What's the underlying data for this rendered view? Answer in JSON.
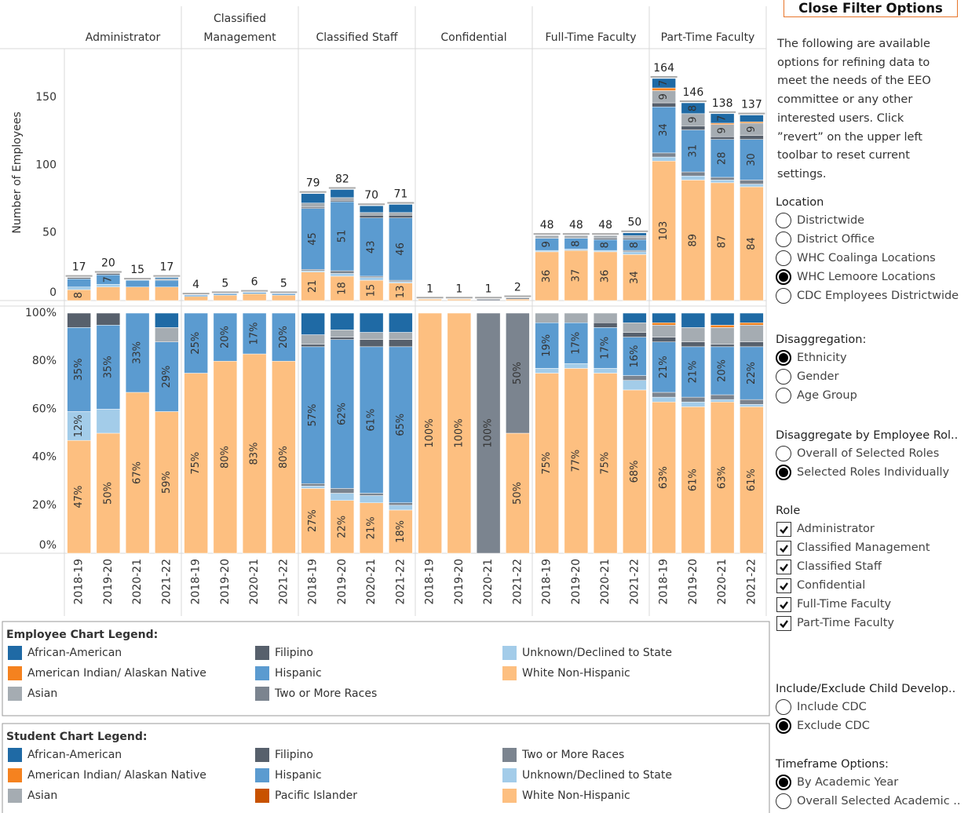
{
  "chart_data": [
    {
      "type": "bar",
      "stacked": true,
      "y_label": "Number of Employees",
      "panels": [
        "Administrator",
        "Classified Management",
        "Classified Staff",
        "Confidential",
        "Full-Time Faculty",
        "Part-Time Faculty"
      ],
      "ylim": [
        0,
        186
      ],
      "yticks": [
        0,
        50,
        100,
        150
      ],
      "grid": false,
      "totals": [
        17,
        20,
        15,
        17,
        4,
        5,
        6,
        5,
        79,
        82,
        70,
        71,
        1,
        1,
        1,
        2,
        48,
        48,
        48,
        50,
        164,
        146,
        138,
        137
      ],
      "series": [
        {
          "name": "African-American",
          "color": "#1f6aa5",
          "values": [
            0,
            0,
            0,
            1,
            0,
            0,
            0,
            0,
            7,
            6,
            5,
            6,
            0,
            0,
            0,
            0,
            0,
            0,
            0,
            2,
            7,
            8,
            7,
            5
          ],
          "value_labels": [
            null,
            null,
            null,
            null,
            null,
            null,
            null,
            null,
            null,
            null,
            null,
            null,
            null,
            null,
            null,
            null,
            null,
            null,
            null,
            null,
            "7",
            "8",
            "7",
            null
          ]
        },
        {
          "name": "American Indian/ Alaskan Native",
          "color": "#f5821f",
          "values": [
            0,
            0,
            0,
            0,
            0,
            0,
            0,
            0,
            0,
            0,
            0,
            0,
            0,
            0,
            0,
            0,
            0,
            0,
            0,
            0,
            2,
            0,
            1,
            1
          ]
        },
        {
          "name": "Asian",
          "color": "#a5acb2",
          "values": [
            0,
            0,
            0,
            1,
            0,
            0,
            0,
            0,
            3,
            2,
            2,
            2,
            0,
            0,
            0,
            0,
            2,
            2,
            2,
            2,
            9,
            9,
            9,
            9
          ],
          "value_labels": [
            null,
            null,
            null,
            null,
            null,
            null,
            null,
            null,
            null,
            null,
            null,
            null,
            null,
            null,
            null,
            null,
            null,
            null,
            null,
            null,
            "9",
            "9",
            "9",
            "9"
          ]
        },
        {
          "name": "Filipino",
          "color": "#57606c",
          "values": [
            1,
            1,
            0,
            0,
            0,
            0,
            0,
            0,
            1,
            1,
            2,
            2,
            0,
            0,
            0,
            0,
            0,
            0,
            1,
            1,
            3,
            3,
            2,
            3
          ]
        },
        {
          "name": "Hispanic",
          "color": "#5b9bd0",
          "values": [
            6,
            7,
            5,
            5,
            1,
            1,
            1,
            1,
            45,
            51,
            43,
            46,
            0,
            0,
            0,
            0,
            9,
            8,
            8,
            8,
            34,
            31,
            28,
            30
          ],
          "value_labels": [
            null,
            "7",
            null,
            null,
            null,
            null,
            null,
            null,
            "45",
            "51",
            "43",
            "46",
            null,
            null,
            null,
            null,
            "9",
            "8",
            "8",
            "8",
            "34",
            "31",
            "28",
            "30"
          ]
        },
        {
          "name": "Two or More Races",
          "color": "#7b848f",
          "values": [
            0,
            0,
            0,
            0,
            0,
            0,
            0,
            0,
            1,
            2,
            1,
            1,
            0,
            0,
            1,
            1,
            0,
            0,
            0,
            1,
            3,
            3,
            2,
            3
          ]
        },
        {
          "name": "Unknown/Declined to State",
          "color": "#a3cce9",
          "values": [
            2,
            2,
            0,
            0,
            0,
            0,
            0,
            0,
            1,
            2,
            2,
            1,
            0,
            0,
            0,
            0,
            1,
            1,
            1,
            2,
            3,
            3,
            2,
            2
          ]
        },
        {
          "name": "White Non-Hispanic",
          "color": "#fdbf80",
          "values": [
            8,
            10,
            10,
            10,
            3,
            4,
            5,
            4,
            21,
            18,
            15,
            13,
            1,
            1,
            0,
            1,
            36,
            37,
            36,
            34,
            103,
            89,
            87,
            84
          ],
          "value_labels": [
            "8",
            null,
            null,
            null,
            null,
            null,
            null,
            null,
            "21",
            "18",
            "15",
            "13",
            null,
            null,
            null,
            null,
            "36",
            "37",
            "36",
            "34",
            "103",
            "89",
            "87",
            "84"
          ]
        }
      ]
    },
    {
      "type": "bar",
      "stacked": true,
      "categories": [
        "2018-19",
        "2019-20",
        "2020-21",
        "2021-22",
        "2018-19",
        "2019-20",
        "2020-21",
        "2021-22",
        "2018-19",
        "2019-20",
        "2020-21",
        "2021-22",
        "2018-19",
        "2019-20",
        "2020-21",
        "2021-22",
        "2018-19",
        "2019-20",
        "2020-21",
        "2021-22",
        "2018-19",
        "2019-20",
        "2020-21",
        "2021-22"
      ],
      "ylim": [
        0,
        100
      ],
      "yticks": [
        {
          "value": 0,
          "label": "0%"
        },
        {
          "value": 20,
          "label": "20%"
        },
        {
          "value": 40,
          "label": "40%"
        },
        {
          "value": 60,
          "label": "60%"
        },
        {
          "value": 80,
          "label": "80%"
        },
        {
          "value": 100,
          "label": "100%"
        }
      ],
      "grid": false,
      "series": [
        {
          "color": "#1f6aa5",
          "values": [
            0,
            0,
            0,
            6,
            0,
            0,
            0,
            0,
            9,
            7,
            8,
            8,
            0,
            0,
            0,
            0,
            0,
            0,
            0,
            4,
            4,
            6,
            5,
            4
          ]
        },
        {
          "color": "#f5821f",
          "values": [
            0,
            0,
            0,
            0,
            0,
            0,
            0,
            0,
            0,
            0,
            0,
            0,
            0,
            0,
            0,
            0,
            0,
            0,
            0,
            0,
            1,
            0,
            1,
            1
          ]
        },
        {
          "color": "#a5acb2",
          "values": [
            0,
            0,
            0,
            6,
            0,
            0,
            0,
            0,
            4,
            3,
            3,
            3,
            0,
            0,
            0,
            0,
            4,
            4,
            4,
            4,
            5,
            6,
            7,
            7
          ]
        },
        {
          "color": "#57606c",
          "values": [
            6,
            5,
            0,
            0,
            0,
            0,
            0,
            0,
            1,
            1,
            3,
            3,
            0,
            0,
            0,
            0,
            0,
            0,
            2,
            2,
            2,
            2,
            1,
            2
          ]
        },
        {
          "color": "#5b9bd0",
          "values": [
            35,
            35,
            33,
            29,
            25,
            20,
            17,
            20,
            57,
            62,
            61,
            65,
            0,
            0,
            0,
            0,
            19,
            17,
            17,
            16,
            21,
            21,
            20,
            22
          ],
          "value_labels": [
            "35%",
            "35%",
            "33%",
            "29%",
            "25%",
            "20%",
            "17%",
            "20%",
            "57%",
            "62%",
            "61%",
            "65%",
            null,
            null,
            null,
            null,
            "19%",
            "17%",
            "17%",
            "16%",
            "21%",
            "21%",
            "20%",
            "22%"
          ]
        },
        {
          "color": "#7b848f",
          "values": [
            0,
            0,
            0,
            0,
            0,
            0,
            0,
            0,
            1,
            2,
            1,
            1,
            0,
            0,
            100,
            50,
            0,
            0,
            0,
            2,
            2,
            2,
            2,
            2
          ],
          "value_labels": [
            null,
            null,
            null,
            null,
            null,
            null,
            null,
            null,
            null,
            null,
            null,
            null,
            null,
            null,
            "100%",
            "50%",
            null,
            null,
            null,
            null,
            null,
            null,
            null,
            null
          ]
        },
        {
          "color": "#a3cce9",
          "values": [
            12,
            10,
            0,
            0,
            0,
            0,
            0,
            0,
            1,
            3,
            3,
            2,
            0,
            0,
            0,
            0,
            2,
            2,
            2,
            4,
            2,
            2,
            1,
            1
          ],
          "value_labels": [
            "12%",
            null,
            null,
            null,
            null,
            null,
            null,
            null,
            null,
            null,
            null,
            null,
            null,
            null,
            null,
            null,
            null,
            null,
            null,
            null,
            null,
            null,
            null,
            null
          ]
        },
        {
          "color": "#fdbf80",
          "values": [
            47,
            50,
            67,
            59,
            75,
            80,
            83,
            80,
            27,
            22,
            21,
            18,
            100,
            100,
            0,
            50,
            75,
            77,
            75,
            68,
            63,
            61,
            63,
            61
          ],
          "value_labels": [
            "47%",
            "50%",
            "67%",
            "59%",
            "75%",
            "80%",
            "83%",
            "80%",
            "27%",
            "22%",
            "21%",
            "18%",
            "100%",
            "100%",
            null,
            "50%",
            "75%",
            "77%",
            "75%",
            "68%",
            "63%",
            "61%",
            "63%",
            "61%"
          ]
        }
      ]
    }
  ],
  "employee_legend": {
    "title": "Employee Chart Legend:"
  },
  "student_legend": {
    "title": "Student Chart Legend:",
    "items": [
      {
        "name": "African-American",
        "color": "#1f6aa5"
      },
      {
        "name": "American Indian/ Alaskan Native",
        "color": "#f5821f"
      },
      {
        "name": "Asian",
        "color": "#a5acb2"
      },
      {
        "name": "Filipino",
        "color": "#57606c"
      },
      {
        "name": "Hispanic",
        "color": "#5b9bd0"
      },
      {
        "name": "Pacific Islander",
        "color": "#c85200"
      },
      {
        "name": "Two or More Races",
        "color": "#7b848f"
      },
      {
        "name": "Unknown/Declined to State",
        "color": "#a3cce9"
      },
      {
        "name": "White Non-Hispanic",
        "color": "#fdbf80"
      }
    ]
  },
  "filter_panel": {
    "button": "Close Filter Options",
    "intro": "The following are available options for refining data to meet the needs of the EEO committee or any other interested users. Click ”revert” on the upper left toolbar to reset current settings.",
    "groups": [
      {
        "title": "Location",
        "control": "radio",
        "options": [
          "Districtwide",
          "District Office",
          "WHC Coalinga Locations",
          "WHC Lemoore Locations",
          "CDC Employees Districtwide"
        ],
        "selected": 3
      },
      {
        "title": "Disaggregation:",
        "control": "radio",
        "options": [
          "Ethnicity",
          "Gender",
          "Age Group"
        ],
        "selected": 0
      },
      {
        "title": "Disaggregate by Employee Rol..",
        "control": "radio",
        "options": [
          "Overall of Selected Roles",
          "Selected Roles Individually"
        ],
        "selected": 1
      },
      {
        "title": "Role",
        "control": "checkbox",
        "options": [
          "Administrator",
          "Classified Management",
          "Classified Staff",
          "Confidential",
          "Full-Time Faculty",
          "Part-Time Faculty"
        ],
        "checked": [
          true,
          true,
          true,
          true,
          true,
          true
        ]
      },
      {
        "title": "Include/Exclude Child Develop..",
        "control": "radio",
        "options": [
          "Include CDC",
          "Exclude CDC"
        ],
        "selected": 1
      },
      {
        "title": "Timeframe Options:",
        "control": "radio",
        "options": [
          "By Academic Year",
          "Overall Selected Academic .."
        ],
        "selected": 0
      }
    ]
  }
}
